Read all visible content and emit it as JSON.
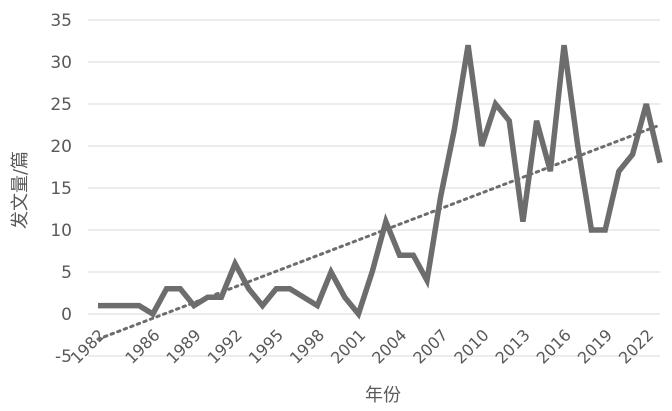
{
  "chart_data": {
    "type": "line",
    "title": "",
    "xlabel": "年份",
    "ylabel": "发文量/篇",
    "ylim": [
      -5,
      35
    ],
    "yticks": [
      -5,
      0,
      5,
      10,
      15,
      20,
      25,
      30,
      35
    ],
    "xlim": [
      1982,
      2023
    ],
    "xticks": [
      1982,
      1986,
      1989,
      1992,
      1995,
      1998,
      2001,
      2004,
      2007,
      2010,
      2013,
      2016,
      2019,
      2022
    ],
    "grid": "horizontal",
    "legend": "none",
    "colors": {
      "series": "#6d6d6d",
      "trend": "#6d6d6d",
      "grid": "#d9d9d9",
      "text": "#595959"
    },
    "series": [
      {
        "x": [
          1982,
          1983,
          1984,
          1985,
          1986,
          1987,
          1988,
          1989,
          1990,
          1991,
          1992,
          1993,
          1994,
          1995,
          1996,
          1997,
          1998,
          1999,
          2000,
          2001,
          2002,
          2003,
          2004,
          2005,
          2006,
          2007,
          2008,
          2009,
          2010,
          2011,
          2012,
          2013,
          2014,
          2015,
          2016,
          2017,
          2018,
          2019,
          2020,
          2021,
          2022,
          2023
        ],
        "values": [
          1,
          1,
          1,
          1,
          0,
          3,
          3,
          1,
          2,
          2,
          6,
          3,
          1,
          3,
          3,
          2,
          1,
          5,
          2,
          0,
          5,
          11,
          7,
          7,
          4,
          14,
          22,
          32,
          20,
          25,
          23,
          11,
          23,
          17,
          32,
          20,
          10,
          10,
          17,
          19,
          25,
          18
        ],
        "style": "solid"
      }
    ],
    "trendline": {
      "type": "linear",
      "style": "dotted",
      "from": [
        1982,
        -3
      ],
      "to": [
        2023,
        22.5
      ]
    }
  }
}
